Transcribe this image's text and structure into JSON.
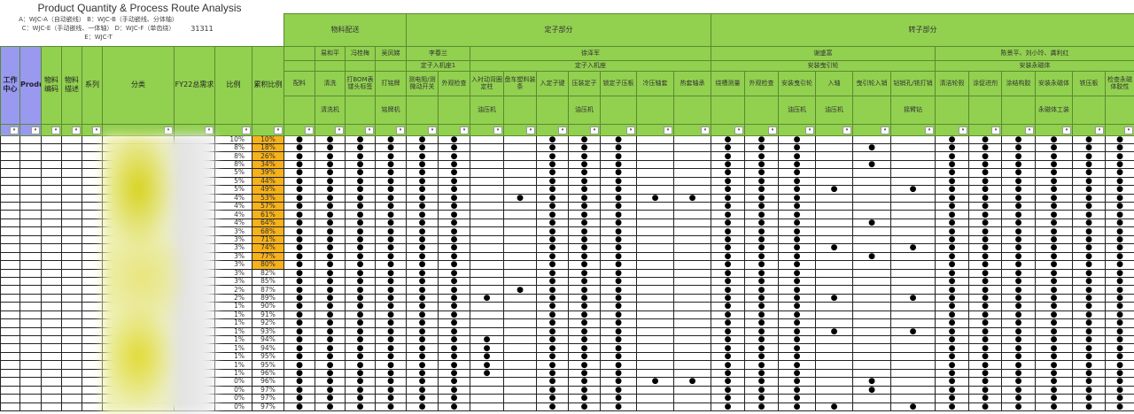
{
  "title": "Product Quantity & Process Route Analysis",
  "legend": {
    "line1": "A：WJC-A（自动嵌线） B：WJC-B（手动嵌线、分体轴）",
    "line2": "C：WJC-E（手动嵌线、一体轴） D：WJC-F（单齿绕） E：WJC-T"
  },
  "total_demand": "31311",
  "left_headers": [
    "工作中心",
    "Product",
    "物料编码",
    "物料描述",
    "系列",
    "分类",
    "FY22总需求",
    "比例",
    "累积比例"
  ],
  "filter_icon": "dropdown-arrow-icon",
  "filter_glyph": "▾",
  "groups": {
    "material": "物料配送",
    "stator": "定子部分",
    "rotor": "转子部分"
  },
  "persons": {
    "p1": "易和平",
    "p2": "冯桂梅",
    "p3": "吴凤娣",
    "p4": "李春兰",
    "p5": "徐泽军",
    "p6": "谢盛富",
    "p7": "陈景平、刘小玲、龚利红"
  },
  "stations": {
    "s1": "定子入机座1",
    "s2": "定子入机座",
    "s3": "安装曳引轮",
    "s4": "安装永磁体"
  },
  "processes": [
    "配料",
    "清洗",
    "打BOM表镂头标签",
    "打铭牌",
    "测电阻/测微动开关",
    "外观检查",
    "入衬动背圈定柱",
    "盘车塑料装条",
    "入定子键",
    "压装定子",
    "锁定子压板",
    "冷压轴套",
    "热套轴承",
    "绕槽测量",
    "外观检查",
    "安装曳引轮",
    "入轴",
    "曳引轮入销",
    "钻销孔/铣打销",
    "清洁轮毂",
    "涂促进剂",
    "涂结构胶",
    "安装永磁体",
    "铁压板",
    "检查永磁体胶性"
  ],
  "equipment": [
    "",
    "清洗机",
    "",
    "铭牌机",
    "",
    "",
    "油压机",
    "",
    "",
    "油压机",
    "",
    "",
    "",
    "",
    "",
    "油压机",
    "油压机",
    "",
    "摇臂钻",
    "",
    "",
    "",
    "永磁体工装",
    "",
    ""
  ],
  "mark_glyph": "●",
  "colors": {
    "header_green": "#92d050",
    "header_purple": "#9999f0",
    "highlight_orange": "#f7b21b"
  },
  "rows": [
    {
      "ratio": "10%",
      "cum": "10%",
      "hl": true,
      "marks": "1111110011100111000111111"
    },
    {
      "ratio": "8%",
      "cum": "18%",
      "hl": true,
      "marks": "1111110011100111010111111"
    },
    {
      "ratio": "8%",
      "cum": "26%",
      "hl": true,
      "marks": "1111110011100111000111111"
    },
    {
      "ratio": "8%",
      "cum": "34%",
      "hl": true,
      "marks": "1111110011100111010111111"
    },
    {
      "ratio": "5%",
      "cum": "39%",
      "hl": true,
      "marks": "1111110011100111000111111"
    },
    {
      "ratio": "5%",
      "cum": "44%",
      "hl": true,
      "marks": "1111110011100111000111111"
    },
    {
      "ratio": "5%",
      "cum": "49%",
      "hl": true,
      "marks": "1111110011100111101111111"
    },
    {
      "ratio": "4%",
      "cum": "53%",
      "hl": true,
      "marks": "1111110111111111000111111"
    },
    {
      "ratio": "4%",
      "cum": "57%",
      "hl": true,
      "marks": "1111110011100111000111111"
    },
    {
      "ratio": "4%",
      "cum": "61%",
      "hl": true,
      "marks": "1111110011100111000111111"
    },
    {
      "ratio": "4%",
      "cum": "64%",
      "hl": true,
      "marks": "1111110011100111010111111"
    },
    {
      "ratio": "3%",
      "cum": "68%",
      "hl": true,
      "marks": "1111110011100111000111111"
    },
    {
      "ratio": "3%",
      "cum": "71%",
      "hl": true,
      "marks": "1111110011100111000111111"
    },
    {
      "ratio": "3%",
      "cum": "74%",
      "hl": true,
      "marks": "1111110011100111101111111"
    },
    {
      "ratio": "3%",
      "cum": "77%",
      "hl": true,
      "marks": "1111110011100111010111111"
    },
    {
      "ratio": "3%",
      "cum": "80%",
      "hl": true,
      "marks": "1111110011100111000111111"
    },
    {
      "ratio": "3%",
      "cum": "82%",
      "hl": false,
      "marks": "1111110011100111000111111"
    },
    {
      "ratio": "3%",
      "cum": "85%",
      "hl": false,
      "marks": "1111110011100111000111111"
    },
    {
      "ratio": "2%",
      "cum": "87%",
      "hl": false,
      "marks": "1111110111100111000111111"
    },
    {
      "ratio": "2%",
      "cum": "89%",
      "hl": false,
      "marks": "1111111011100111101111111"
    },
    {
      "ratio": "1%",
      "cum": "90%",
      "hl": false,
      "marks": "1111110011100111000111111"
    },
    {
      "ratio": "1%",
      "cum": "91%",
      "hl": false,
      "marks": "1111110011100111000111111"
    },
    {
      "ratio": "1%",
      "cum": "92%",
      "hl": false,
      "marks": "1111110011100111000111111"
    },
    {
      "ratio": "1%",
      "cum": "93%",
      "hl": false,
      "marks": "1111110011100111101111111"
    },
    {
      "ratio": "1%",
      "cum": "94%",
      "hl": false,
      "marks": "1111111011100111000111111"
    },
    {
      "ratio": "1%",
      "cum": "94%",
      "hl": false,
      "marks": "1111111011100111000111111"
    },
    {
      "ratio": "1%",
      "cum": "95%",
      "hl": false,
      "marks": "1111111011100111000111111"
    },
    {
      "ratio": "1%",
      "cum": "95%",
      "hl": false,
      "marks": "1111111011100111000111111"
    },
    {
      "ratio": "1%",
      "cum": "96%",
      "hl": false,
      "marks": "1111111011100111000111111"
    },
    {
      "ratio": "0%",
      "cum": "96%",
      "hl": false,
      "marks": "1111110011111111010111111"
    },
    {
      "ratio": "0%",
      "cum": "97%",
      "hl": false,
      "marks": "1111110011100111010111111"
    },
    {
      "ratio": "0%",
      "cum": "97%",
      "hl": false,
      "marks": "1111110011100111000111111"
    },
    {
      "ratio": "0%",
      "cum": "97%",
      "hl": false,
      "marks": "1111110011100111101111111"
    }
  ]
}
